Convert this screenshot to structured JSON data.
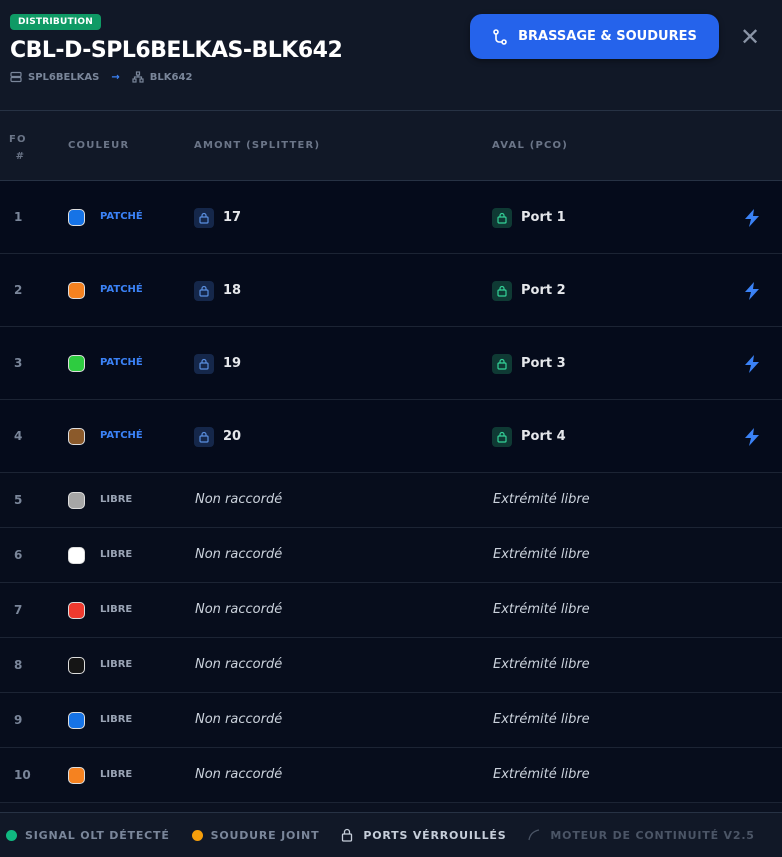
{
  "header": {
    "badge": "DISTRIBUTION",
    "title": "CBL-D-SPL6BELKAS-BLK642",
    "source": "SPL6BELKAS",
    "arrow": "→",
    "target": "BLK642",
    "button_label": "BRASSAGE & SOUDURES",
    "close": "✕"
  },
  "columns": {
    "fo": "FO",
    "hash": "#",
    "color": "COULEUR",
    "upstream": "AMONT (SPLITTER)",
    "downstream": "AVAL (PCO)"
  },
  "rows": [
    {
      "fo": "1",
      "color": "#1673e6",
      "status": "PATCHÉ",
      "upstream": "17",
      "downstream": "Port 1",
      "patched": true
    },
    {
      "fo": "2",
      "color": "#f58220",
      "status": "PATCHÉ",
      "upstream": "18",
      "downstream": "Port 2",
      "patched": true
    },
    {
      "fo": "3",
      "color": "#2ecc40",
      "status": "PATCHÉ",
      "upstream": "19",
      "downstream": "Port 3",
      "patched": true
    },
    {
      "fo": "4",
      "color": "#8b5a2b",
      "status": "PATCHÉ",
      "upstream": "20",
      "downstream": "Port 4",
      "patched": true
    },
    {
      "fo": "5",
      "color": "#a6a6a6",
      "status": "LIBRE",
      "upstream": "Non raccordé",
      "downstream": "Extrémité libre",
      "patched": false
    },
    {
      "fo": "6",
      "color": "#ffffff",
      "status": "LIBRE",
      "upstream": "Non raccordé",
      "downstream": "Extrémité libre",
      "patched": false
    },
    {
      "fo": "7",
      "color": "#f03a2e",
      "status": "LIBRE",
      "upstream": "Non raccordé",
      "downstream": "Extrémité libre",
      "patched": false
    },
    {
      "fo": "8",
      "color": "#151515",
      "status": "LIBRE",
      "upstream": "Non raccordé",
      "downstream": "Extrémité libre",
      "patched": false
    },
    {
      "fo": "9",
      "color": "#1673e6",
      "status": "LIBRE",
      "upstream": "Non raccordé",
      "downstream": "Extrémité libre",
      "patched": false
    },
    {
      "fo": "10",
      "color": "#f58220",
      "status": "LIBRE",
      "upstream": "Non raccordé",
      "downstream": "Extrémité libre",
      "patched": false
    }
  ],
  "footer": {
    "signal": "SIGNAL OLT DÉTECTÉ",
    "weld": "SOUDURE JOINT",
    "locked": "PORTS VÉRROUILLÉS",
    "engine": "MOTEUR DE CONTINUITÉ V2.5"
  },
  "colors": {
    "accent": "#2563eb",
    "patched": "#3b82f6",
    "free": "#9aa4b5",
    "signal": "#10b981",
    "weld": "#f59e0b"
  }
}
